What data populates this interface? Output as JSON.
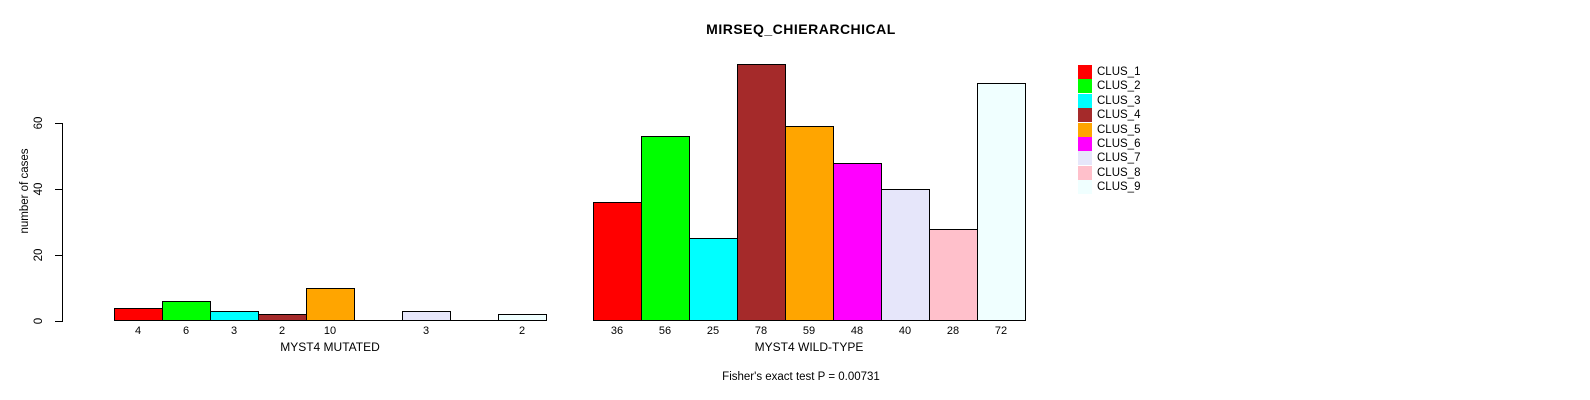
{
  "chart_data": {
    "type": "bar",
    "title": "MIRSEQ_CHIERARCHICAL",
    "ylabel": "number of cases",
    "xlabel": "",
    "ylim": [
      0,
      78
    ],
    "yticks": [
      0,
      20,
      40,
      60
    ],
    "grid": false,
    "legend_position": "right",
    "footnote": "Fisher's exact test P = 0.00731",
    "clusters": [
      {
        "name": "CLUS_1",
        "color": "#FF0000"
      },
      {
        "name": "CLUS_2",
        "color": "#00FF00"
      },
      {
        "name": "CLUS_3",
        "color": "#00FFFF"
      },
      {
        "name": "CLUS_4",
        "color": "#A52A2A"
      },
      {
        "name": "CLUS_5",
        "color": "#FFA500"
      },
      {
        "name": "CLUS_6",
        "color": "#FF00FF"
      },
      {
        "name": "CLUS_7",
        "color": "#E6E6FA"
      },
      {
        "name": "CLUS_8",
        "color": "#FFC0CB"
      },
      {
        "name": "CLUS_9",
        "color": "#F0FFFF"
      }
    ],
    "groups": [
      {
        "label": "MYST4 MUTATED",
        "values": [
          4,
          6,
          3,
          2,
          10,
          0,
          3,
          0,
          2
        ],
        "value_labels": [
          "4",
          "6",
          "3",
          "2",
          "10",
          "",
          "3",
          "",
          "2"
        ]
      },
      {
        "label": "MYST4 WILD-TYPE",
        "values": [
          36,
          56,
          25,
          78,
          59,
          48,
          40,
          28,
          72
        ],
        "value_labels": [
          "36",
          "56",
          "25",
          "78",
          "59",
          "48",
          "40",
          "28",
          "72"
        ]
      }
    ],
    "colors": [
      "#FF0000",
      "#00FF00",
      "#00FFFF",
      "#A52A2A",
      "#FFA500",
      "#FF00FF",
      "#E6E6FA",
      "#FFC0CB",
      "#F0FFFF"
    ],
    "axis_color": "#000000",
    "background_color": "#FFFFFF"
  }
}
